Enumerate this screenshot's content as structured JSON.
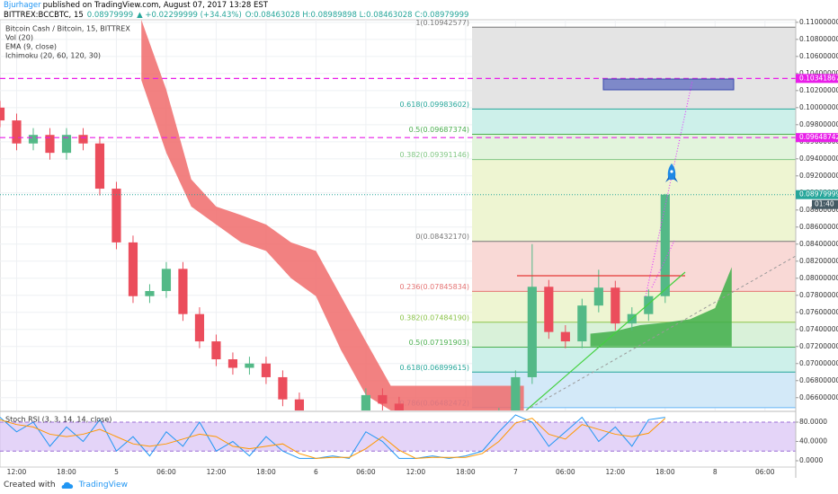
{
  "header": {
    "author": "Bjurhager",
    "published": "published on TradingView.com, August 07, 2017 13:28 EST",
    "symbol": "BITTREX:BCCBTC, 15",
    "last": "0.08979999",
    "change": "▲ +0.02299999 (+34.43%)",
    "ohlc": "O:0.08463028 H:0.08989898 L:0.08463028 C:0.08979999"
  },
  "footer": {
    "created": "Created with",
    "brand": "TradingView"
  },
  "chart_data": [
    {
      "type": "candlestick",
      "title": "Bitcoin Cash / Bitcoin, 15, BITTREX",
      "indicators": [
        "Vol (20)",
        "EMA (9, close)",
        "Ichimoku (20, 60, 120, 30)"
      ],
      "up_color": "#53b987",
      "down_color": "#eb4d5c",
      "x": [
        -2,
        0,
        2,
        4,
        6,
        8,
        10,
        12,
        14,
        16,
        18,
        20,
        22,
        24,
        26,
        28,
        30,
        32,
        34,
        36,
        38,
        40,
        42,
        44,
        46,
        48,
        50,
        52,
        54,
        56,
        58,
        60,
        62,
        64,
        66,
        68,
        70,
        72,
        74,
        76,
        78
      ],
      "open": [
        0.1,
        0.0985,
        0.0958,
        0.0968,
        0.0947,
        0.0968,
        0.0958,
        0.0905,
        0.0842,
        0.0779,
        0.0785,
        0.0811,
        0.0758,
        0.0726,
        0.0705,
        0.0695,
        0.07,
        0.0684,
        0.0658,
        0.0632,
        0.062,
        0.0625,
        0.063,
        0.0663,
        0.0653,
        0.063,
        0.0622,
        0.0625,
        0.062,
        0.0623,
        0.0626,
        0.064,
        0.0684,
        0.079,
        0.0737,
        0.0726,
        0.0768,
        0.0789,
        0.0747,
        0.0758,
        0.0779
      ],
      "high": [
        0.1008,
        0.0993,
        0.0976,
        0.0976,
        0.0976,
        0.0976,
        0.0966,
        0.0913,
        0.085,
        0.0793,
        0.0819,
        0.0819,
        0.0766,
        0.0734,
        0.0713,
        0.0708,
        0.0708,
        0.0692,
        0.0666,
        0.064,
        0.0633,
        0.0638,
        0.0671,
        0.0671,
        0.0661,
        0.0638,
        0.0633,
        0.0633,
        0.0631,
        0.0634,
        0.0648,
        0.0692,
        0.084,
        0.0798,
        0.0745,
        0.0776,
        0.081,
        0.0797,
        0.0766,
        0.0787,
        0.08989898
      ],
      "low": [
        0.0977,
        0.095,
        0.095,
        0.0939,
        0.0939,
        0.095,
        0.0897,
        0.0834,
        0.0771,
        0.0771,
        0.0777,
        0.075,
        0.0718,
        0.0697,
        0.0687,
        0.0687,
        0.0676,
        0.065,
        0.0624,
        0.0612,
        0.0612,
        0.0617,
        0.0622,
        0.0645,
        0.0622,
        0.0614,
        0.0614,
        0.0612,
        0.0612,
        0.0615,
        0.0618,
        0.0632,
        0.0676,
        0.0729,
        0.0718,
        0.0718,
        0.076,
        0.0739,
        0.0739,
        0.075,
        0.0771
      ],
      "close": [
        0.0985,
        0.0958,
        0.0968,
        0.0947,
        0.0968,
        0.0958,
        0.0905,
        0.0842,
        0.0779,
        0.0785,
        0.0811,
        0.0758,
        0.0726,
        0.0705,
        0.0695,
        0.07,
        0.0684,
        0.0658,
        0.0632,
        0.062,
        0.0625,
        0.063,
        0.0663,
        0.0653,
        0.063,
        0.0622,
        0.0625,
        0.062,
        0.0623,
        0.0626,
        0.064,
        0.0684,
        0.079,
        0.0737,
        0.0726,
        0.0768,
        0.0789,
        0.0747,
        0.0758,
        0.0779,
        0.08979999
      ],
      "xlim": [
        -2,
        93.7
      ],
      "xticks": [
        {
          "value": 0,
          "label": "12:00"
        },
        {
          "value": 6,
          "label": "18:00"
        },
        {
          "value": 12,
          "label": "5"
        },
        {
          "value": 18,
          "label": "06:00"
        },
        {
          "value": 24,
          "label": "12:00"
        },
        {
          "value": 30,
          "label": "18:00"
        },
        {
          "value": 36,
          "label": "6"
        },
        {
          "value": 42,
          "label": "06:00"
        },
        {
          "value": 48,
          "label": "12:00"
        },
        {
          "value": 54,
          "label": "18:00"
        },
        {
          "value": 60,
          "label": "7"
        },
        {
          "value": 66,
          "label": "06:00"
        },
        {
          "value": 72,
          "label": "12:00"
        },
        {
          "value": 78,
          "label": "18:00"
        },
        {
          "value": 84,
          "label": "8"
        },
        {
          "value": 90,
          "label": "06:00"
        }
      ],
      "ylim": [
        0.0645,
        0.1103
      ],
      "yticks": [
        {
          "value": 0.066,
          "label": "0.06600000"
        },
        {
          "value": 0.068,
          "label": "0.06800000"
        },
        {
          "value": 0.07,
          "label": "0.07000000"
        },
        {
          "value": 0.072,
          "label": "0.07200000"
        },
        {
          "value": 0.074,
          "label": "0.07400000"
        },
        {
          "value": 0.076,
          "label": "0.07600000"
        },
        {
          "value": 0.078,
          "label": "0.07800000"
        },
        {
          "value": 0.08,
          "label": "0.08000000"
        },
        {
          "value": 0.082,
          "label": "0.08200000"
        },
        {
          "value": 0.084,
          "label": "0.08400000"
        },
        {
          "value": 0.086,
          "label": "0.08600000"
        },
        {
          "value": 0.088,
          "label": "0.08800000"
        },
        {
          "value": 0.09,
          "label": "0.09000000"
        },
        {
          "value": 0.092,
          "label": "0.09200000"
        },
        {
          "value": 0.094,
          "label": "0.09400000"
        },
        {
          "value": 0.096,
          "label": "0.09600000"
        },
        {
          "value": 0.098,
          "label": "0.09800000"
        },
        {
          "value": 0.1,
          "label": "0.10000000"
        },
        {
          "value": 0.102,
          "label": "0.10200000"
        },
        {
          "value": 0.104,
          "label": "0.10400000"
        },
        {
          "value": 0.106,
          "label": "0.10600000"
        },
        {
          "value": 0.108,
          "label": "0.10800000"
        },
        {
          "value": 0.11,
          "label": "0.11000000"
        }
      ],
      "grid": true,
      "fib_levels": [
        {
          "value": 0.10942577,
          "label": "1(0.10942577)",
          "color": "#787878",
          "fill": "#e4e4e4"
        },
        {
          "value": 0.09983602,
          "label": "0.618(0.09983602)",
          "color": "#26a69a",
          "fill": "#cdf0ea"
        },
        {
          "value": 0.09687374,
          "label": "0.5(0.09687374)",
          "color": "#4caf50",
          "fill": "#e2f4dc"
        },
        {
          "value": 0.09391146,
          "label": "0.382(0.09391146)",
          "color": "#81c784",
          "fill": "#eef5d2"
        },
        {
          "value": 0.0843217,
          "label": "0(0.08432170)",
          "color": "#787878",
          "fill": "#f9d9d6"
        },
        {
          "value": 0.07845834,
          "label": "0.236(0.07845834)",
          "color": "#e57373",
          "fill": "#eef5d2"
        },
        {
          "value": 0.0748419,
          "label": "0.382(0.07484190)",
          "color": "#8bc34a",
          "fill": "#d9f1d9"
        },
        {
          "value": 0.07191903,
          "label": "0.5(0.07191903)",
          "color": "#4caf50",
          "fill": "#cdf0ea"
        },
        {
          "value": 0.06899615,
          "label": "0.618(0.06899615)",
          "color": "#26a69a",
          "fill": "#d3e9f8"
        },
        {
          "value": 0.06482472,
          "label": "0.786(0.06482472)",
          "color": "#64b5f6"
        }
      ],
      "clouds": [
        {
          "color": "#f06b6b",
          "x": [
            15,
            18,
            21,
            24,
            27,
            30,
            33,
            36,
            39,
            42,
            45,
            48,
            54,
            61
          ],
          "upper": [
            0.1103,
            0.1021,
            0.0916,
            0.0884,
            0.0874,
            0.0863,
            0.0842,
            0.0832,
            0.0779,
            0.0726,
            0.0674,
            0.0674,
            0.0674,
            0.0674
          ],
          "lower": [
            0.1032,
            0.0947,
            0.0884,
            0.0863,
            0.0842,
            0.0832,
            0.08,
            0.0779,
            0.0716,
            0.0663,
            0.0645,
            0.0645,
            0.0645,
            0.0645
          ]
        },
        {
          "color": "#3fae49",
          "x": [
            69,
            72,
            75,
            78,
            81,
            84,
            86
          ],
          "upper": [
            0.0735,
            0.0738,
            0.0745,
            0.0748,
            0.0752,
            0.0765,
            0.0813
          ],
          "lower": [
            0.072,
            0.072,
            0.072,
            0.072,
            0.072,
            0.072,
            0.072
          ]
        }
      ],
      "hlines": [
        {
          "value": 0.10341867,
          "color": "#e91ee9"
        },
        {
          "value": 0.09648742,
          "color": "#e91ee9"
        }
      ],
      "countdown": "01:40"
    },
    {
      "type": "line",
      "title": "Stoch RSI (3, 3, 14, 14, close)",
      "x": [
        -2,
        0,
        2,
        4,
        6,
        8,
        10,
        12,
        14,
        16,
        18,
        20,
        22,
        24,
        26,
        28,
        30,
        32,
        34,
        36,
        38,
        40,
        42,
        44,
        46,
        48,
        50,
        52,
        54,
        56,
        58,
        60,
        62,
        64,
        66,
        68,
        70,
        72,
        74,
        76,
        78
      ],
      "series": [
        {
          "color": "#2196f3",
          "values": [
            90,
            60,
            80,
            30,
            70,
            40,
            85,
            20,
            50,
            10,
            60,
            30,
            80,
            20,
            40,
            10,
            50,
            20,
            5,
            5,
            10,
            5,
            60,
            40,
            5,
            5,
            10,
            5,
            10,
            20,
            60,
            95,
            80,
            30,
            60,
            90,
            40,
            70,
            30,
            85,
            90
          ]
        },
        {
          "color": "#ff9800",
          "values": [
            85,
            75,
            70,
            55,
            50,
            55,
            65,
            50,
            35,
            30,
            35,
            45,
            55,
            50,
            30,
            25,
            30,
            35,
            15,
            5,
            7,
            7,
            25,
            50,
            22,
            5,
            7,
            7,
            7,
            15,
            40,
            78,
            88,
            55,
            45,
            75,
            65,
            55,
            50,
            57,
            88
          ]
        }
      ],
      "xlim": [
        -2,
        93.7
      ],
      "ylim": [
        -13,
        98.6
      ],
      "yticks": [
        {
          "value": 80,
          "label": "80.0000"
        },
        {
          "value": 40,
          "label": "40.0000"
        },
        {
          "value": 0,
          "label": "0.0000"
        }
      ],
      "band": [
        20,
        80
      ],
      "band_color": "#d9c2f5"
    }
  ]
}
